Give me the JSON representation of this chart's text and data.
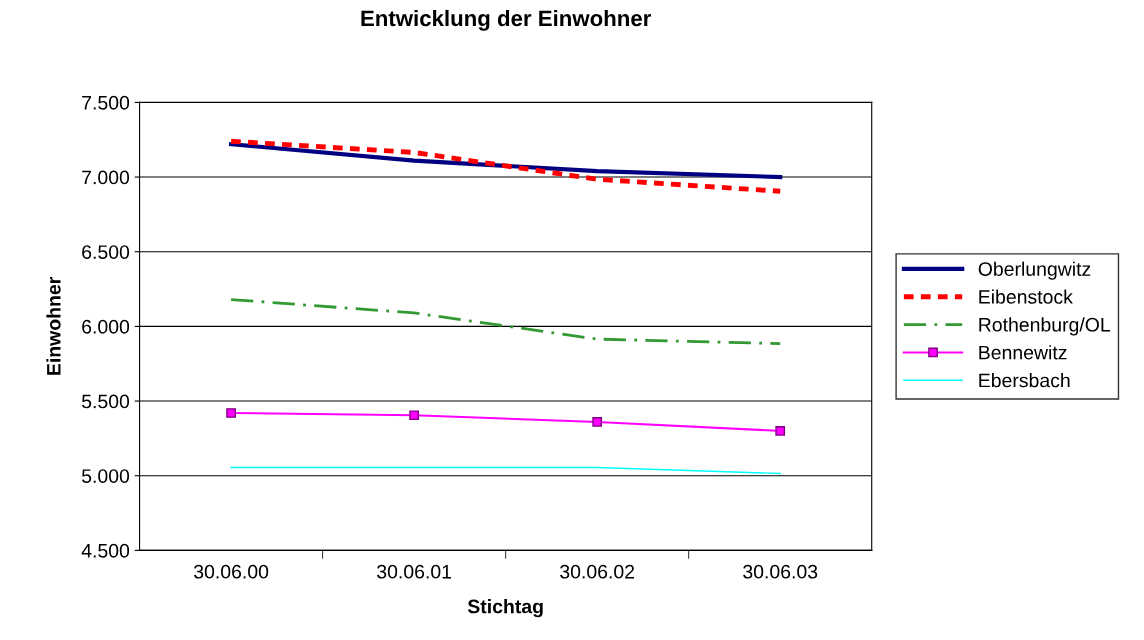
{
  "chart_data": {
    "type": "line",
    "title": "Entwicklung der Einwohner",
    "xlabel": "Stichtag",
    "ylabel": "Einwohner",
    "categories": [
      "30.06.00",
      "30.06.01",
      "30.06.02",
      "30.06.03"
    ],
    "series": [
      {
        "name": "Oberlungwitz",
        "color": "#000080",
        "values": [
          7220,
          7110,
          7040,
          7000
        ],
        "line_style": "solid",
        "marker": "none"
      },
      {
        "name": "Eibenstock",
        "color": "#ff0000",
        "values": [
          7240,
          7165,
          6985,
          6905
        ],
        "line_style": "dashed",
        "marker": "none"
      },
      {
        "name": "Rothenburg/OL",
        "color": "#339933",
        "values": [
          6180,
          6090,
          5915,
          5885
        ],
        "line_style": "dashdot",
        "marker": "none"
      },
      {
        "name": "Bennewitz",
        "color": "#ff00ff",
        "values": [
          5420,
          5405,
          5360,
          5300
        ],
        "line_style": "solid",
        "marker": "square"
      },
      {
        "name": "Ebersbach",
        "color": "#00ffff",
        "values": [
          5055,
          5055,
          5055,
          5015
        ],
        "line_style": "solid",
        "marker": "none"
      }
    ],
    "ylim": [
      4500,
      7500
    ],
    "yticks": [
      {
        "value": 4500,
        "label": "4.500"
      },
      {
        "value": 5000,
        "label": "5.000"
      },
      {
        "value": 5500,
        "label": "5.500"
      },
      {
        "value": 6000,
        "label": "6.000"
      },
      {
        "value": 6500,
        "label": "6.500"
      },
      {
        "value": 7000,
        "label": "7.000"
      },
      {
        "value": 7500,
        "label": "7.500"
      }
    ],
    "grid": "y",
    "legend": "right"
  }
}
